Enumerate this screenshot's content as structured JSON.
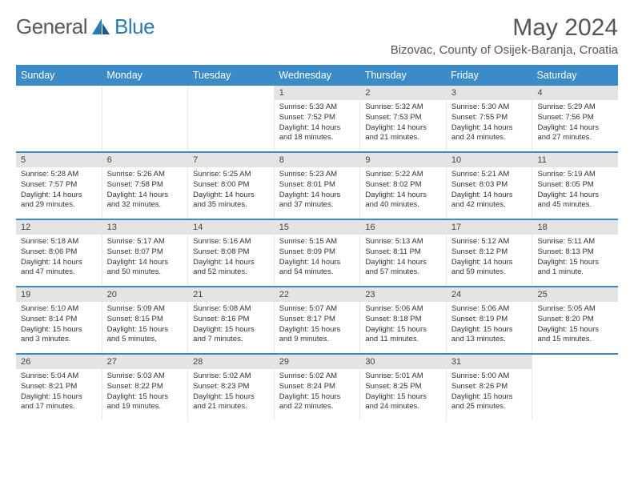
{
  "logo": {
    "part1": "General",
    "part2": "Blue"
  },
  "title": "May 2024",
  "location": "Bizovac, County of Osijek-Baranja, Croatia",
  "colors": {
    "header_bg": "#3b8bc9",
    "header_text": "#ffffff",
    "daynum_bg": "#e4e4e4",
    "week_border": "#3b8bc9",
    "text": "#333333",
    "title_text": "#555555"
  },
  "weekdays": [
    "Sunday",
    "Monday",
    "Tuesday",
    "Wednesday",
    "Thursday",
    "Friday",
    "Saturday"
  ],
  "weeks": [
    [
      null,
      null,
      null,
      {
        "n": "1",
        "sr": "5:33 AM",
        "ss": "7:52 PM",
        "dl": "14 hours and 18 minutes."
      },
      {
        "n": "2",
        "sr": "5:32 AM",
        "ss": "7:53 PM",
        "dl": "14 hours and 21 minutes."
      },
      {
        "n": "3",
        "sr": "5:30 AM",
        "ss": "7:55 PM",
        "dl": "14 hours and 24 minutes."
      },
      {
        "n": "4",
        "sr": "5:29 AM",
        "ss": "7:56 PM",
        "dl": "14 hours and 27 minutes."
      }
    ],
    [
      {
        "n": "5",
        "sr": "5:28 AM",
        "ss": "7:57 PM",
        "dl": "14 hours and 29 minutes."
      },
      {
        "n": "6",
        "sr": "5:26 AM",
        "ss": "7:58 PM",
        "dl": "14 hours and 32 minutes."
      },
      {
        "n": "7",
        "sr": "5:25 AM",
        "ss": "8:00 PM",
        "dl": "14 hours and 35 minutes."
      },
      {
        "n": "8",
        "sr": "5:23 AM",
        "ss": "8:01 PM",
        "dl": "14 hours and 37 minutes."
      },
      {
        "n": "9",
        "sr": "5:22 AM",
        "ss": "8:02 PM",
        "dl": "14 hours and 40 minutes."
      },
      {
        "n": "10",
        "sr": "5:21 AM",
        "ss": "8:03 PM",
        "dl": "14 hours and 42 minutes."
      },
      {
        "n": "11",
        "sr": "5:19 AM",
        "ss": "8:05 PM",
        "dl": "14 hours and 45 minutes."
      }
    ],
    [
      {
        "n": "12",
        "sr": "5:18 AM",
        "ss": "8:06 PM",
        "dl": "14 hours and 47 minutes."
      },
      {
        "n": "13",
        "sr": "5:17 AM",
        "ss": "8:07 PM",
        "dl": "14 hours and 50 minutes."
      },
      {
        "n": "14",
        "sr": "5:16 AM",
        "ss": "8:08 PM",
        "dl": "14 hours and 52 minutes."
      },
      {
        "n": "15",
        "sr": "5:15 AM",
        "ss": "8:09 PM",
        "dl": "14 hours and 54 minutes."
      },
      {
        "n": "16",
        "sr": "5:13 AM",
        "ss": "8:11 PM",
        "dl": "14 hours and 57 minutes."
      },
      {
        "n": "17",
        "sr": "5:12 AM",
        "ss": "8:12 PM",
        "dl": "14 hours and 59 minutes."
      },
      {
        "n": "18",
        "sr": "5:11 AM",
        "ss": "8:13 PM",
        "dl": "15 hours and 1 minute."
      }
    ],
    [
      {
        "n": "19",
        "sr": "5:10 AM",
        "ss": "8:14 PM",
        "dl": "15 hours and 3 minutes."
      },
      {
        "n": "20",
        "sr": "5:09 AM",
        "ss": "8:15 PM",
        "dl": "15 hours and 5 minutes."
      },
      {
        "n": "21",
        "sr": "5:08 AM",
        "ss": "8:16 PM",
        "dl": "15 hours and 7 minutes."
      },
      {
        "n": "22",
        "sr": "5:07 AM",
        "ss": "8:17 PM",
        "dl": "15 hours and 9 minutes."
      },
      {
        "n": "23",
        "sr": "5:06 AM",
        "ss": "8:18 PM",
        "dl": "15 hours and 11 minutes."
      },
      {
        "n": "24",
        "sr": "5:06 AM",
        "ss": "8:19 PM",
        "dl": "15 hours and 13 minutes."
      },
      {
        "n": "25",
        "sr": "5:05 AM",
        "ss": "8:20 PM",
        "dl": "15 hours and 15 minutes."
      }
    ],
    [
      {
        "n": "26",
        "sr": "5:04 AM",
        "ss": "8:21 PM",
        "dl": "15 hours and 17 minutes."
      },
      {
        "n": "27",
        "sr": "5:03 AM",
        "ss": "8:22 PM",
        "dl": "15 hours and 19 minutes."
      },
      {
        "n": "28",
        "sr": "5:02 AM",
        "ss": "8:23 PM",
        "dl": "15 hours and 21 minutes."
      },
      {
        "n": "29",
        "sr": "5:02 AM",
        "ss": "8:24 PM",
        "dl": "15 hours and 22 minutes."
      },
      {
        "n": "30",
        "sr": "5:01 AM",
        "ss": "8:25 PM",
        "dl": "15 hours and 24 minutes."
      },
      {
        "n": "31",
        "sr": "5:00 AM",
        "ss": "8:26 PM",
        "dl": "15 hours and 25 minutes."
      },
      null
    ]
  ]
}
